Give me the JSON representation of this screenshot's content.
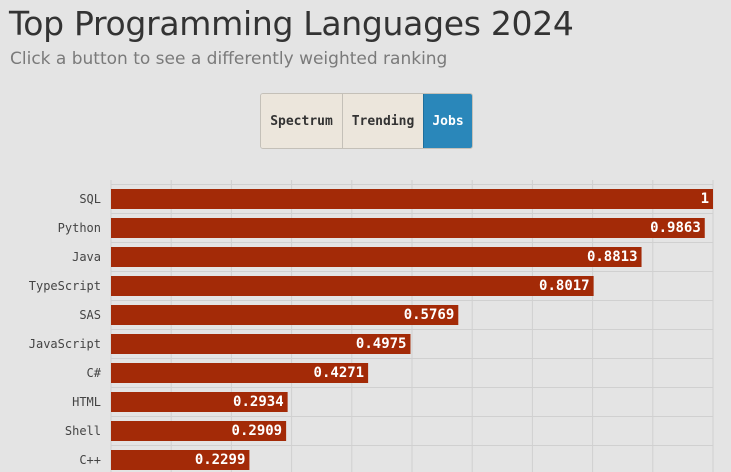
{
  "header": {
    "title": "Top Programming Languages 2024",
    "subtitle": "Click a button to see a differently weighted ranking"
  },
  "buttons": {
    "spectrum": "Spectrum",
    "trending": "Trending",
    "jobs": "Jobs",
    "active": "jobs"
  },
  "colors": {
    "bar": "#a32a07",
    "button_active": "#2a87ba",
    "button_inactive": "#ece6dc",
    "background": "#e4e4e4",
    "grid": "#d0d0d0"
  },
  "chart_data": {
    "type": "bar",
    "orientation": "horizontal",
    "categories": [
      "SQL",
      "Python",
      "Java",
      "TypeScript",
      "SAS",
      "JavaScript",
      "C#",
      "HTML",
      "Shell",
      "C++"
    ],
    "values": [
      1,
      0.9863,
      0.8813,
      0.8017,
      0.5769,
      0.4975,
      0.4271,
      0.2934,
      0.2909,
      0.2299
    ],
    "value_labels": [
      "1",
      "0.9863",
      "0.8813",
      "0.8017",
      "0.5769",
      "0.4975",
      "0.4271",
      "0.2934",
      "0.2909",
      "0.2299"
    ],
    "xlim": [
      0,
      1
    ],
    "grid": true,
    "legend": "none"
  }
}
